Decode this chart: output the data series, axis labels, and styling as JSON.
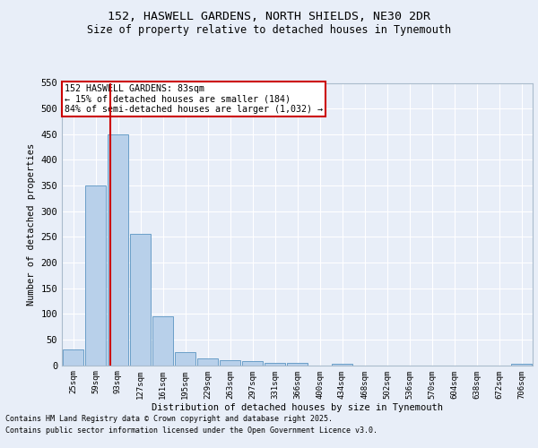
{
  "title_line1": "152, HASWELL GARDENS, NORTH SHIELDS, NE30 2DR",
  "title_line2": "Size of property relative to detached houses in Tynemouth",
  "xlabel": "Distribution of detached houses by size in Tynemouth",
  "ylabel": "Number of detached properties",
  "categories": [
    "25sqm",
    "59sqm",
    "93sqm",
    "127sqm",
    "161sqm",
    "195sqm",
    "229sqm",
    "263sqm",
    "297sqm",
    "331sqm",
    "366sqm",
    "400sqm",
    "434sqm",
    "468sqm",
    "502sqm",
    "536sqm",
    "570sqm",
    "604sqm",
    "638sqm",
    "672sqm",
    "706sqm"
  ],
  "values": [
    30,
    350,
    450,
    255,
    95,
    25,
    13,
    10,
    8,
    5,
    4,
    0,
    3,
    0,
    0,
    0,
    0,
    0,
    0,
    0,
    2
  ],
  "bar_color": "#b8d0ea",
  "bar_edgecolor": "#6a9fc8",
  "vline_color": "#cc0000",
  "annotation_text": "152 HASWELL GARDENS: 83sqm\n← 15% of detached houses are smaller (184)\n84% of semi-detached houses are larger (1,032) →",
  "annotation_box_color": "#ffffff",
  "annotation_box_edgecolor": "#cc0000",
  "ylim": [
    0,
    550
  ],
  "yticks": [
    0,
    50,
    100,
    150,
    200,
    250,
    300,
    350,
    400,
    450,
    500,
    550
  ],
  "background_color": "#e8eef8",
  "grid_color": "#ffffff",
  "footer_line1": "Contains HM Land Registry data © Crown copyright and database right 2025.",
  "footer_line2": "Contains public sector information licensed under the Open Government Licence v3.0."
}
